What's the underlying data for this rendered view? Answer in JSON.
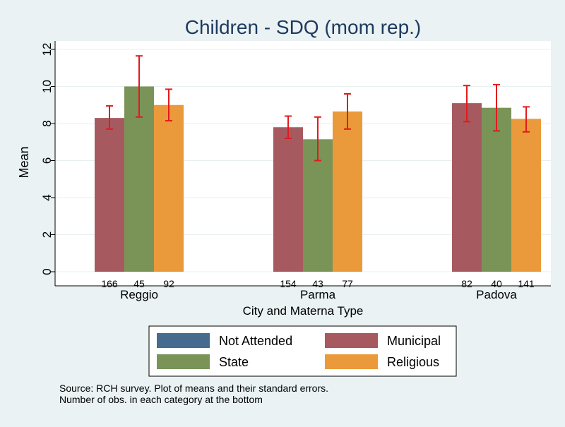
{
  "chart_data": {
    "type": "bar",
    "title": "Children - SDQ (mom rep.)",
    "xlabel": "City and Materna Type",
    "ylabel": "Mean",
    "ylim": [
      0,
      12
    ],
    "yticks": [
      0,
      2,
      4,
      6,
      8,
      10,
      12
    ],
    "grid": true,
    "categories": [
      "Reggio",
      "Parma",
      "Padova"
    ],
    "series": [
      {
        "name": "Municipal",
        "color": "#a65a5f",
        "values": [
          8.3,
          7.8,
          9.1
        ],
        "ci_low": [
          7.7,
          7.2,
          8.1
        ],
        "ci_high": [
          8.95,
          8.4,
          10.05
        ],
        "n": [
          166,
          154,
          82
        ]
      },
      {
        "name": "State",
        "color": "#7a9458",
        "values": [
          10.0,
          7.15,
          8.85
        ],
        "ci_low": [
          8.35,
          6.0,
          7.6
        ],
        "ci_high": [
          11.65,
          8.35,
          10.1
        ],
        "n": [
          45,
          43,
          40
        ]
      },
      {
        "name": "Religious",
        "color": "#ea9a3a",
        "values": [
          9.0,
          8.65,
          8.25
        ],
        "ci_low": [
          8.15,
          7.7,
          7.55
        ],
        "ci_high": [
          9.85,
          9.6,
          8.9
        ],
        "n": [
          92,
          77,
          141
        ]
      }
    ],
    "errorbar_color": "#e31a1c",
    "legend": {
      "position": "bottom",
      "items": [
        {
          "label": "Not Attended",
          "color": "#476b8e"
        },
        {
          "label": "Municipal",
          "color": "#a65a5f"
        },
        {
          "label": "State",
          "color": "#7a9458"
        },
        {
          "label": "Religious",
          "color": "#ea9a3a"
        }
      ]
    },
    "notes": [
      "Source: RCH survey. Plot of means and their standard errors.",
      "Number of obs. in each category at the bottom"
    ]
  },
  "colors": {
    "background": "#eaf2f3",
    "plot_bg": "#ffffff",
    "grid": "#e8efef",
    "title": "#1e3a5f"
  }
}
